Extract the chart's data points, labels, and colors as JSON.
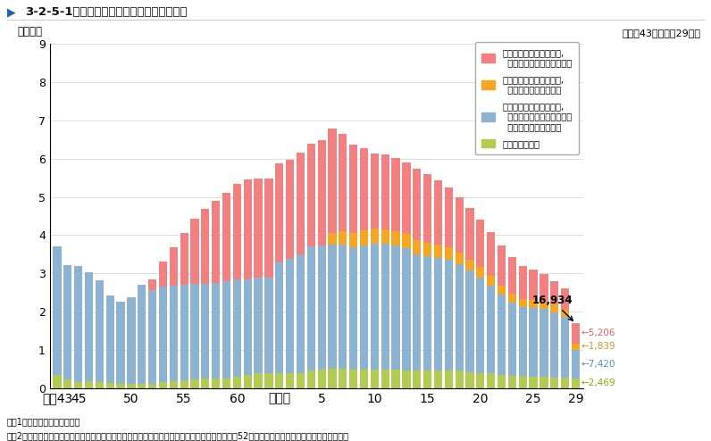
{
  "title_prefix": "3-2-5-1",
  "title_zu": "図",
  "title_main": "少年の保護観察開始人員の推移",
  "subtitle": "（昭和43年～平成29年）",
  "ylabel": "（万人）",
  "colors": {
    "blue": "#8CB4D2",
    "green": "#B2CC52",
    "orange": "#F5A623",
    "pink": "#F28080"
  },
  "legend_labels": [
    "保護観察処分少年のうち,\n  交通短期保護観察の対象者",
    "保護観察処分少年のうち,\n  短期保護観察の対象者",
    "保護観察処分少年のうち,\n  短期及び交通短期保護観察\n  の対象者を除いたもの",
    "少年院仮退院者"
  ],
  "note1": "注　1　保護統計年報による。",
  "note2": "　　2　「交通短期保護観察」及び「短期保護観察」については，それぞれ制度が開始された昭和52年，平成６年以降の数値を計上している。",
  "last_total": "16,934",
  "last_values": [
    "5,206",
    "1,839",
    "7,420",
    "2,469"
  ],
  "last_ann_colors": [
    "#E86060",
    "#E09020",
    "#5090C0",
    "#88AA00"
  ],
  "tick_positions": [
    0,
    2,
    7,
    12,
    17,
    21,
    25,
    30,
    35,
    40,
    45,
    49
  ],
  "tick_labels": [
    "昭和43",
    "45",
    "50",
    "55",
    "60",
    "平成元",
    "5",
    "10",
    "15",
    "20",
    "25",
    "29"
  ],
  "blue_data": [
    3.35,
    3.0,
    3.05,
    2.85,
    2.65,
    2.28,
    2.15,
    2.28,
    2.6,
    2.45,
    2.5,
    2.5,
    2.5,
    2.5,
    2.48,
    2.5,
    2.55,
    2.55,
    2.5,
    2.5,
    2.48,
    2.9,
    3.0,
    3.1,
    3.25,
    3.25,
    3.25,
    3.25,
    3.2,
    3.25,
    3.3,
    3.3,
    3.25,
    3.2,
    3.05,
    3.0,
    2.95,
    2.9,
    2.8,
    2.65,
    2.5,
    2.3,
    2.1,
    1.9,
    1.8,
    1.8,
    1.78,
    1.7,
    1.6,
    0.742
  ],
  "green_data": [
    0.35,
    0.22,
    0.15,
    0.18,
    0.16,
    0.14,
    0.1,
    0.1,
    0.1,
    0.12,
    0.15,
    0.18,
    0.2,
    0.22,
    0.24,
    0.24,
    0.25,
    0.3,
    0.35,
    0.38,
    0.4,
    0.38,
    0.38,
    0.4,
    0.45,
    0.48,
    0.5,
    0.5,
    0.48,
    0.48,
    0.48,
    0.48,
    0.48,
    0.45,
    0.45,
    0.45,
    0.45,
    0.45,
    0.45,
    0.42,
    0.4,
    0.38,
    0.35,
    0.33,
    0.32,
    0.3,
    0.29,
    0.28,
    0.27,
    0.2469
  ],
  "orange_data": [
    0.0,
    0.0,
    0.0,
    0.0,
    0.0,
    0.0,
    0.0,
    0.0,
    0.0,
    0.0,
    0.0,
    0.0,
    0.0,
    0.0,
    0.0,
    0.0,
    0.0,
    0.0,
    0.0,
    0.0,
    0.0,
    0.0,
    0.0,
    0.0,
    0.0,
    0.0,
    0.3,
    0.35,
    0.38,
    0.4,
    0.4,
    0.38,
    0.38,
    0.38,
    0.38,
    0.36,
    0.35,
    0.33,
    0.3,
    0.28,
    0.26,
    0.25,
    0.24,
    0.23,
    0.22,
    0.21,
    0.21,
    0.2,
    0.19,
    0.1839
  ],
  "pink_data": [
    0.0,
    0.0,
    0.0,
    0.0,
    0.0,
    0.0,
    0.0,
    0.0,
    0.0,
    0.27,
    0.65,
    1.0,
    1.35,
    1.7,
    1.97,
    2.15,
    2.3,
    2.5,
    2.6,
    2.6,
    2.6,
    2.6,
    2.6,
    2.65,
    2.7,
    2.75,
    2.75,
    2.55,
    2.3,
    2.15,
    1.95,
    1.95,
    1.9,
    1.88,
    1.85,
    1.78,
    1.68,
    1.58,
    1.45,
    1.35,
    1.25,
    1.15,
    1.05,
    0.97,
    0.86,
    0.78,
    0.7,
    0.62,
    0.55,
    0.5206
  ]
}
